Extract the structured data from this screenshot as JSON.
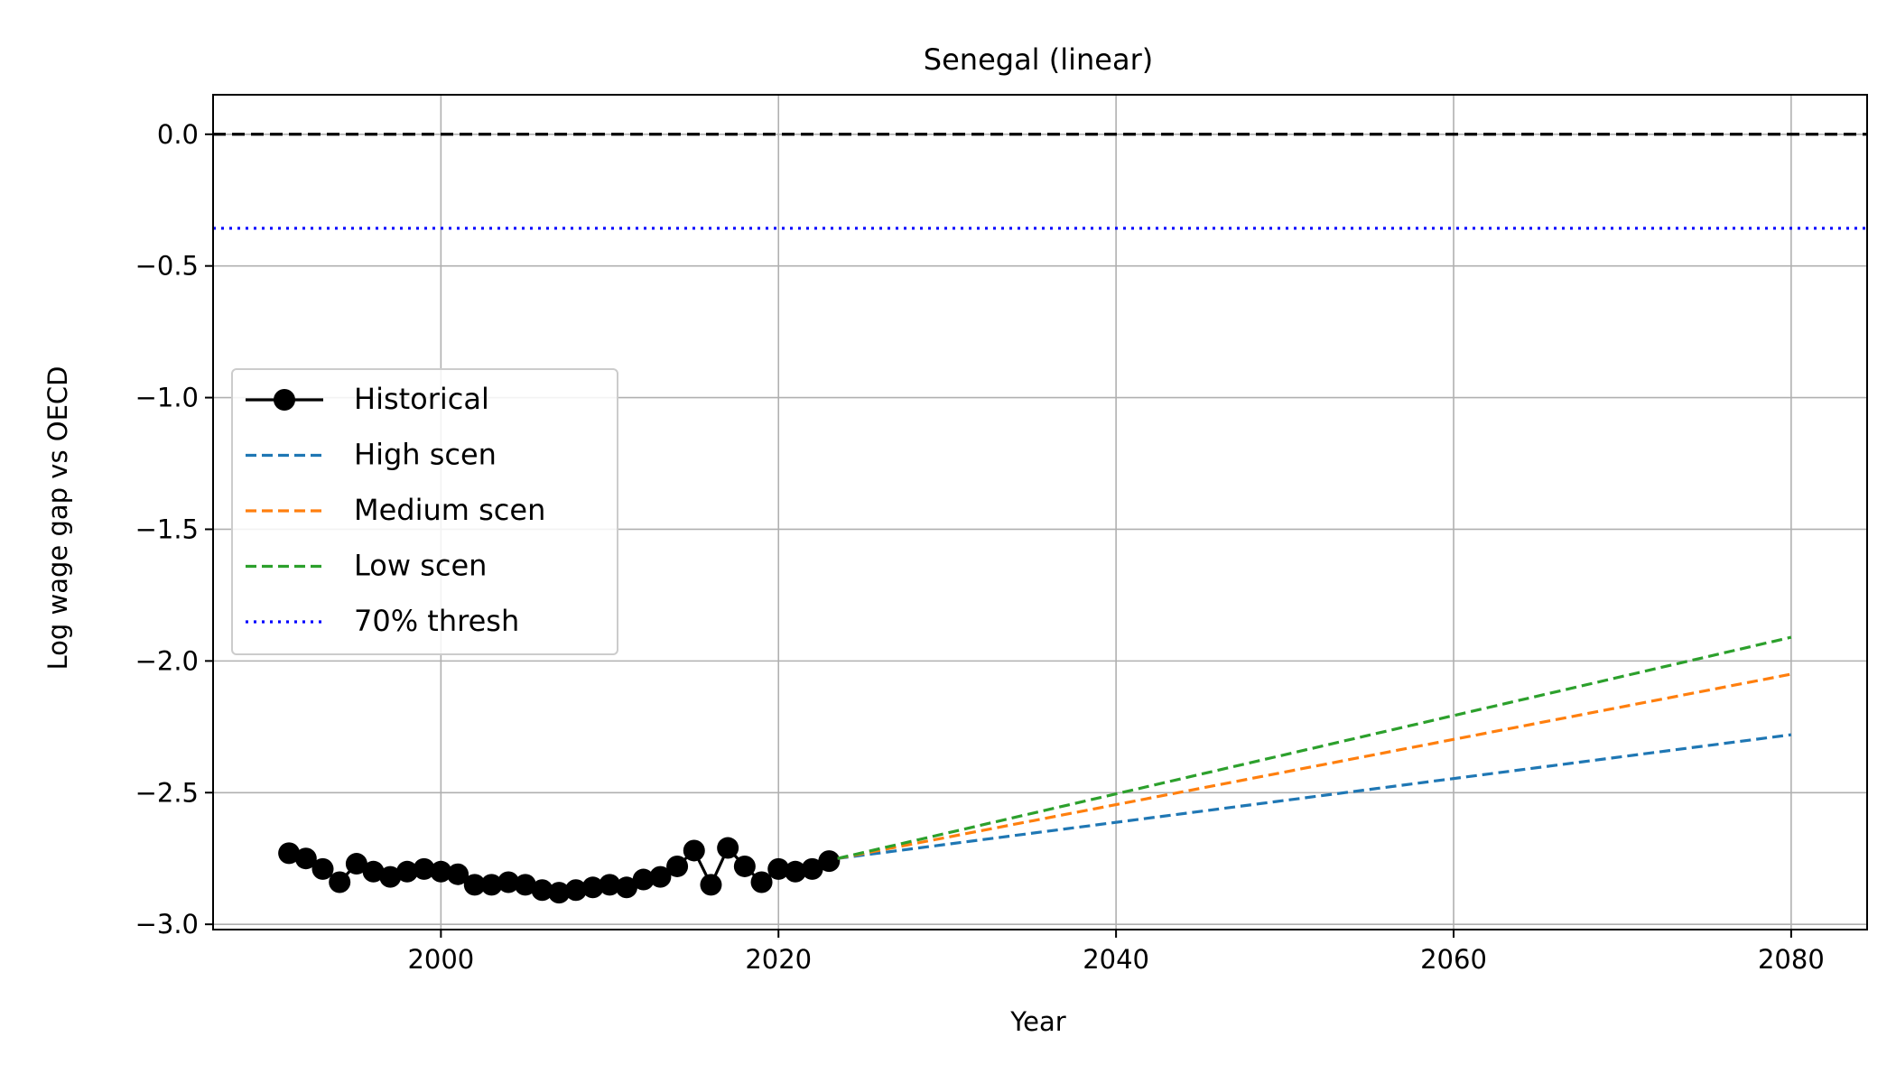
{
  "chart_data": {
    "type": "line",
    "title": "Senegal (linear)",
    "xlabel": "Year",
    "ylabel": "Log wage gap vs OECD",
    "xlim": [
      1986.5,
      2084.5
    ],
    "ylim": [
      -3.02,
      0.15
    ],
    "xticks": [
      2000,
      2020,
      2040,
      2060,
      2080
    ],
    "xtick_labels": [
      "2000",
      "2020",
      "2040",
      "2060",
      "2080"
    ],
    "yticks": [
      0.0,
      -0.5,
      -1.0,
      -1.5,
      -2.0,
      -2.5,
      -3.0
    ],
    "ytick_labels": [
      "0.0",
      "−0.5",
      "−1.0",
      "−1.5",
      "−2.0",
      "−2.5",
      "−3.0"
    ],
    "grid": true,
    "legend_position": "center-left",
    "reference_lines": [
      {
        "y": 0.0,
        "color": "#000000",
        "style": "dashed"
      },
      {
        "y": -0.357,
        "color": "#0000ff",
        "style": "dotted",
        "name": "70% thresh"
      }
    ],
    "series": [
      {
        "name": "Historical",
        "color": "#000000",
        "style": "solid",
        "marker": "circle",
        "x": [
          1991,
          1992,
          1993,
          1994,
          1995,
          1996,
          1997,
          1998,
          1999,
          2000,
          2001,
          2002,
          2003,
          2004,
          2005,
          2006,
          2007,
          2008,
          2009,
          2010,
          2011,
          2012,
          2013,
          2014,
          2015,
          2016,
          2017,
          2018,
          2019,
          2020,
          2021,
          2022,
          2023
        ],
        "y": [
          -2.73,
          -2.75,
          -2.79,
          -2.84,
          -2.77,
          -2.8,
          -2.82,
          -2.8,
          -2.79,
          -2.8,
          -2.81,
          -2.85,
          -2.85,
          -2.84,
          -2.85,
          -2.87,
          -2.88,
          -2.87,
          -2.86,
          -2.85,
          -2.86,
          -2.83,
          -2.82,
          -2.78,
          -2.72,
          -2.85,
          -2.71,
          -2.78,
          -2.84,
          -2.79,
          -2.8,
          -2.79,
          -2.76
        ]
      },
      {
        "name": "High scen",
        "color": "#1f77b4",
        "style": "dashed",
        "x": [
          2023.5,
          2080
        ],
        "y": [
          -2.75,
          -2.28
        ]
      },
      {
        "name": "Medium scen",
        "color": "#ff7f0e",
        "style": "dashed",
        "x": [
          2023.5,
          2080
        ],
        "y": [
          -2.75,
          -2.05
        ]
      },
      {
        "name": "Low scen",
        "color": "#2ca02c",
        "style": "dashed",
        "x": [
          2023.5,
          2080
        ],
        "y": [
          -2.75,
          -1.91
        ]
      }
    ],
    "legend": [
      "Historical",
      "High scen",
      "Medium scen",
      "Low scen",
      "70% thresh"
    ]
  }
}
